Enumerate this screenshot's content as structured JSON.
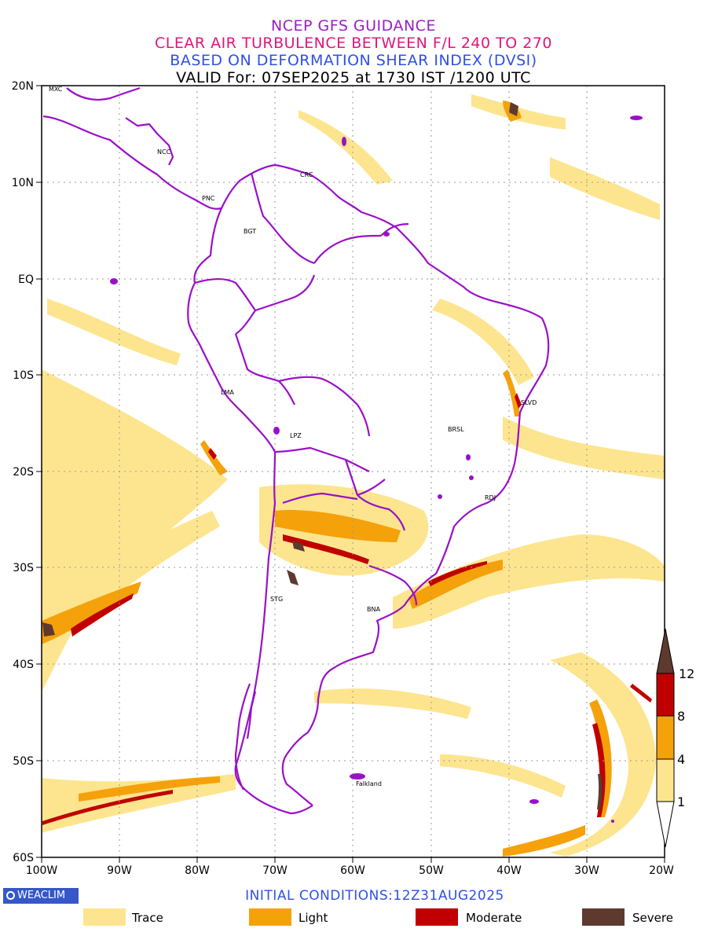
{
  "titles": {
    "line1": "NCEP GFS GUIDANCE",
    "line2": "CLEAR AIR TURBULENCE BETWEEN F/L 240 TO 270",
    "line3": "BASED ON DEFORMATION SHEAR INDEX (DVSI)",
    "line4": "VALID For: 07SEP2025 at 1730 IST /1200 UTC"
  },
  "axes": {
    "lat_labels": [
      "20N",
      "10N",
      "EQ",
      "10S",
      "20S",
      "30S",
      "40S",
      "50S",
      "60S"
    ],
    "lon_labels": [
      "100W",
      "90W",
      "80W",
      "70W",
      "60W",
      "50W",
      "40W",
      "30W",
      "20W"
    ]
  },
  "cities": [
    {
      "name": "MXC"
    },
    {
      "name": "NCC"
    },
    {
      "name": "CRC"
    },
    {
      "name": "PNC"
    },
    {
      "name": "BGT"
    },
    {
      "name": "LMA"
    },
    {
      "name": "LPZ"
    },
    {
      "name": "BRSL"
    },
    {
      "name": "SLVD"
    },
    {
      "name": "RDJ"
    },
    {
      "name": "STG"
    },
    {
      "name": "BNA"
    },
    {
      "name": "Falkland"
    }
  ],
  "colorbar": {
    "labels": [
      "12",
      "8",
      "4",
      "1"
    ],
    "colors": {
      "trace": "#fde58f",
      "light": "#f5a10a",
      "moderate": "#c00000",
      "severe": "#5e3a2e"
    }
  },
  "footer": {
    "logo": "WEACLIM",
    "init_conditions": "INITIAL CONDITIONS:12Z31AUG2025"
  },
  "legend": [
    "Trace",
    "Light",
    "Moderate",
    "Severe"
  ],
  "colors": {
    "border": "#9a10c8",
    "title1": "#9b1ec0",
    "title2": "#e0157a",
    "title3": "#2f4fe8"
  }
}
